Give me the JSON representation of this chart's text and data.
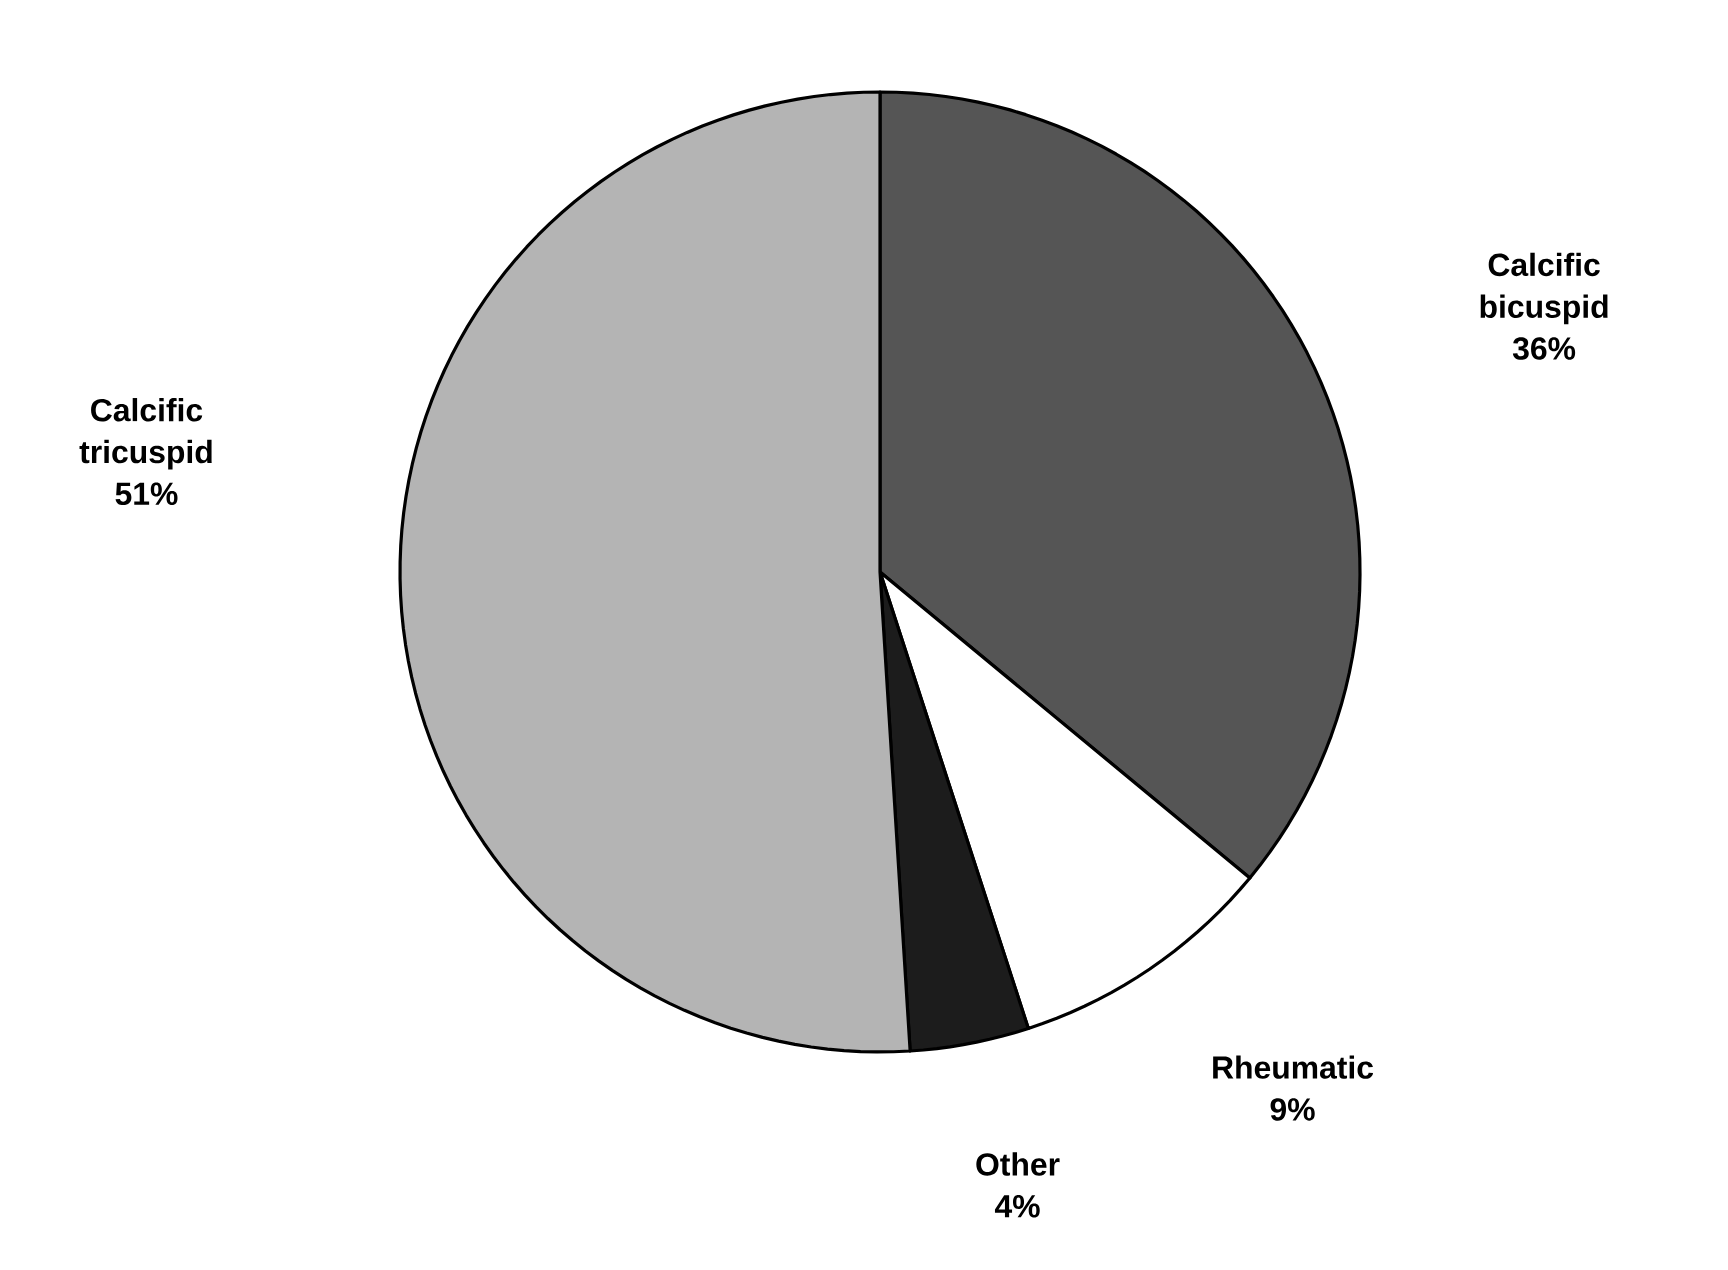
{
  "chart_data": {
    "type": "pie",
    "categories": [
      "Calcific bicuspid",
      "Rheumatic",
      "Other",
      "Calcific tricuspid"
    ],
    "values": [
      36,
      9,
      4,
      51
    ],
    "value_labels": [
      "36%",
      "9%",
      "4%",
      "51%"
    ],
    "colors": [
      "#555555",
      "#ffffff",
      "#1c1c1c",
      "#b4b4b4"
    ]
  }
}
